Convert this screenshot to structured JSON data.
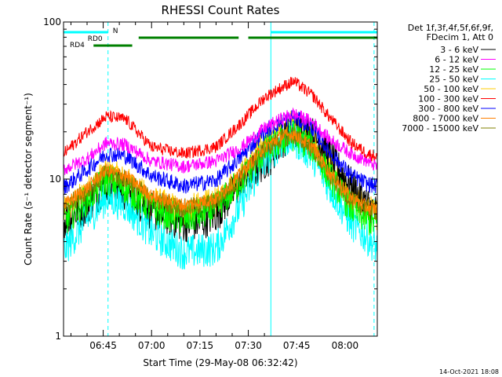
{
  "chart_data": {
    "type": "line",
    "title": "RHESSI Count Rates",
    "xlabel": "Start Time (29-May-08 06:32:42)",
    "ylabel": "Count Rate (s⁻¹ detector segment⁻¹)",
    "y_scale": "log",
    "ylim": [
      1,
      100
    ],
    "y_ticks": [
      {
        "value": 1,
        "label": "1"
      },
      {
        "value": 10,
        "label": "10"
      },
      {
        "value": 100,
        "label": "100"
      }
    ],
    "xlim": [
      "06:32:42",
      "08:10:00"
    ],
    "x_ticks": [
      "06:45",
      "07:00",
      "07:15",
      "07:30",
      "07:45",
      "08:00"
    ],
    "legend_position": "right",
    "legend_header": [
      "Det 1f,3f,4f,5f,6f,9f,",
      "FDecim 1, Att 0"
    ],
    "series": [
      {
        "name": "3 - 6 keV",
        "color": "#000000",
        "values": [
          [
            32.7,
            5.3
          ],
          [
            40,
            6.8
          ],
          [
            46,
            9.2
          ],
          [
            52,
            8.2
          ],
          [
            60,
            6.2
          ],
          [
            70,
            5.2
          ],
          [
            75,
            5.3
          ],
          [
            80,
            6.0
          ],
          [
            85,
            8.0
          ],
          [
            92,
            11.5
          ],
          [
            97,
            14
          ],
          [
            100,
            17.5
          ],
          [
            105,
            21
          ],
          [
            106,
            21
          ],
          [
            110,
            19
          ],
          [
            113,
            16.5
          ],
          [
            118,
            11.5
          ],
          [
            123,
            8.5
          ],
          [
            127,
            6.8
          ],
          [
            130,
            6.0
          ]
        ]
      },
      {
        "name": "6 - 12 keV",
        "color": "#ff00ff",
        "values": [
          [
            32.7,
            11.5
          ],
          [
            40,
            13.5
          ],
          [
            46,
            17
          ],
          [
            52,
            16.5
          ],
          [
            60,
            13
          ],
          [
            70,
            12
          ],
          [
            80,
            13
          ],
          [
            88,
            16
          ],
          [
            95,
            21
          ],
          [
            100,
            24
          ],
          [
            104,
            26
          ],
          [
            110,
            23
          ],
          [
            115,
            18
          ],
          [
            122,
            14.5
          ],
          [
            127,
            13
          ],
          [
            130,
            12
          ]
        ]
      },
      {
        "name": "12 - 25 keV",
        "color": "#00ff00",
        "values": [
          [
            32.7,
            5.3
          ],
          [
            40,
            7.5
          ],
          [
            46,
            10
          ],
          [
            52,
            8.8
          ],
          [
            60,
            6.5
          ],
          [
            70,
            5.5
          ],
          [
            80,
            6.5
          ],
          [
            88,
            10
          ],
          [
            95,
            15
          ],
          [
            100,
            17.5
          ],
          [
            104,
            19
          ],
          [
            110,
            16
          ],
          [
            115,
            10.5
          ],
          [
            122,
            6.5
          ],
          [
            127,
            5.5
          ],
          [
            130,
            5.2
          ]
        ]
      },
      {
        "name": "25 - 50 keV",
        "color": "#00ffff",
        "values": [
          [
            32.7,
            3.5
          ],
          [
            40,
            5.5
          ],
          [
            46,
            7.6
          ],
          [
            52,
            6.8
          ],
          [
            60,
            4.5
          ],
          [
            70,
            3.4
          ],
          [
            80,
            3.6
          ],
          [
            88,
            7
          ],
          [
            95,
            13
          ],
          [
            100,
            17
          ],
          [
            104,
            18
          ],
          [
            110,
            14
          ],
          [
            115,
            9
          ],
          [
            122,
            5.2
          ],
          [
            127,
            4.2
          ],
          [
            130,
            3.6
          ]
        ]
      },
      {
        "name": "50 - 100 keV",
        "color": "#ffcc00",
        "values": [
          [
            32.7,
            6.0
          ],
          [
            40,
            8.2
          ],
          [
            46,
            11
          ],
          [
            52,
            9.6
          ],
          [
            60,
            7.2
          ],
          [
            70,
            6.2
          ],
          [
            80,
            7
          ],
          [
            88,
            10.5
          ],
          [
            95,
            16.5
          ],
          [
            100,
            20
          ],
          [
            104,
            22
          ],
          [
            110,
            17.5
          ],
          [
            115,
            11.5
          ],
          [
            122,
            7.5
          ],
          [
            127,
            6.3
          ],
          [
            130,
            6.0
          ]
        ]
      },
      {
        "name": "100 - 300 keV",
        "color": "#ff0000",
        "values": [
          [
            32.7,
            14.5
          ],
          [
            40,
            20
          ],
          [
            46,
            25
          ],
          [
            52,
            24
          ],
          [
            60,
            16
          ],
          [
            70,
            14.5
          ],
          [
            80,
            16
          ],
          [
            88,
            23
          ],
          [
            95,
            33
          ],
          [
            100,
            38
          ],
          [
            104,
            42
          ],
          [
            110,
            34
          ],
          [
            115,
            25
          ],
          [
            122,
            17
          ],
          [
            127,
            14.5
          ],
          [
            130,
            14
          ]
        ]
      },
      {
        "name": "300 - 800 keV",
        "color": "#0000ff",
        "values": [
          [
            32.7,
            8.8
          ],
          [
            40,
            11.5
          ],
          [
            46,
            14.5
          ],
          [
            52,
            14
          ],
          [
            60,
            10.5
          ],
          [
            70,
            9.0
          ],
          [
            80,
            9.8
          ],
          [
            88,
            14
          ],
          [
            95,
            20
          ],
          [
            100,
            23
          ],
          [
            104,
            25
          ],
          [
            110,
            21
          ],
          [
            115,
            15
          ],
          [
            122,
            10.5
          ],
          [
            127,
            9.3
          ],
          [
            130,
            9.0
          ]
        ]
      },
      {
        "name": "800 - 7000 keV",
        "color": "#ff8000",
        "values": [
          [
            32.7,
            6.8
          ],
          [
            40,
            8.8
          ],
          [
            46,
            11.5
          ],
          [
            52,
            10.5
          ],
          [
            60,
            7.8
          ],
          [
            70,
            6.8
          ],
          [
            80,
            7.5
          ],
          [
            88,
            11
          ],
          [
            95,
            16
          ],
          [
            100,
            18.5
          ],
          [
            104,
            19.5
          ],
          [
            110,
            16
          ],
          [
            115,
            11
          ],
          [
            122,
            7.6
          ],
          [
            127,
            6.6
          ],
          [
            130,
            6.4
          ]
        ]
      },
      {
        "name": "7000 - 15000 keV",
        "color": "#808000",
        "values": [
          [
            32.7,
            6.5
          ],
          [
            40,
            8.5
          ],
          [
            46,
            11
          ],
          [
            52,
            10
          ],
          [
            60,
            7.5
          ],
          [
            70,
            6.5
          ],
          [
            80,
            7.2
          ],
          [
            88,
            10.5
          ],
          [
            95,
            15.5
          ],
          [
            100,
            18
          ],
          [
            104,
            19
          ],
          [
            110,
            15.5
          ],
          [
            115,
            10.5
          ],
          [
            122,
            7.3
          ],
          [
            127,
            6.4
          ],
          [
            130,
            6.2
          ]
        ]
      }
    ],
    "state_bars": [
      {
        "name": "N",
        "color": "#00ffff",
        "segments": [
          [
            32.7,
            46.5
          ],
          [
            97,
            130
          ]
        ]
      },
      {
        "name": "RD0",
        "color": "#008000",
        "segments": [
          [
            56,
            87
          ],
          [
            90,
            124
          ],
          [
            108,
            130
          ]
        ]
      },
      {
        "name": "RD4",
        "color": "#008000",
        "segments": [
          [
            42,
            54
          ]
        ]
      }
    ],
    "vertical_lines": [
      {
        "x": 32.7,
        "style": "solid",
        "color": "#00ffff"
      },
      {
        "x": 46.5,
        "style": "dashed",
        "color": "#00ffff"
      },
      {
        "x": 97,
        "style": "solid",
        "color": "#00ffff"
      },
      {
        "x": 129,
        "style": "dashed",
        "color": "#00ffff"
      }
    ],
    "timestamp": "14-Oct-2021 18:08"
  }
}
